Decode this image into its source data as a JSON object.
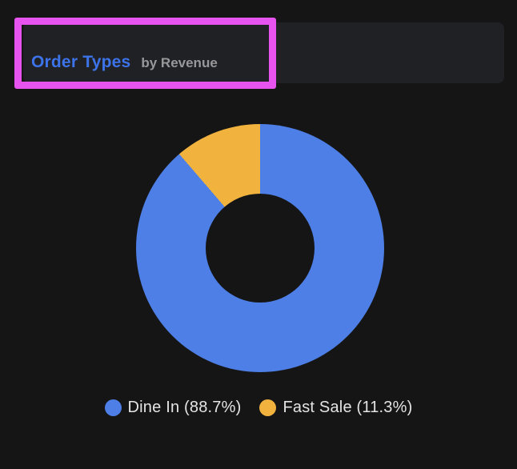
{
  "header": {
    "title": "Order Types",
    "subtitle": "by Revenue"
  },
  "annotation": {
    "highlight_color": "#E653EF"
  },
  "colors": {
    "background": "#151515",
    "panel": "#202124",
    "title_blue": "#3D73E9",
    "subtitle_gray": "#98989B",
    "legend_text": "#E4E4E4"
  },
  "chart_data": {
    "type": "pie",
    "variant": "donut",
    "title": "Order Types",
    "subtitle": "by Revenue",
    "segments": [
      {
        "label": "Dine In",
        "value": 88.7,
        "color": "#4D7FE6",
        "legend_label": "Dine In (88.7%)"
      },
      {
        "label": "Fast Sale",
        "value": 11.3,
        "color": "#F1B33E",
        "legend_label": "Fast Sale (11.3%)"
      }
    ],
    "start_angle_deg": 0,
    "direction": "clockwise",
    "hole_ratio": 0.44,
    "legend_position": "bottom"
  }
}
